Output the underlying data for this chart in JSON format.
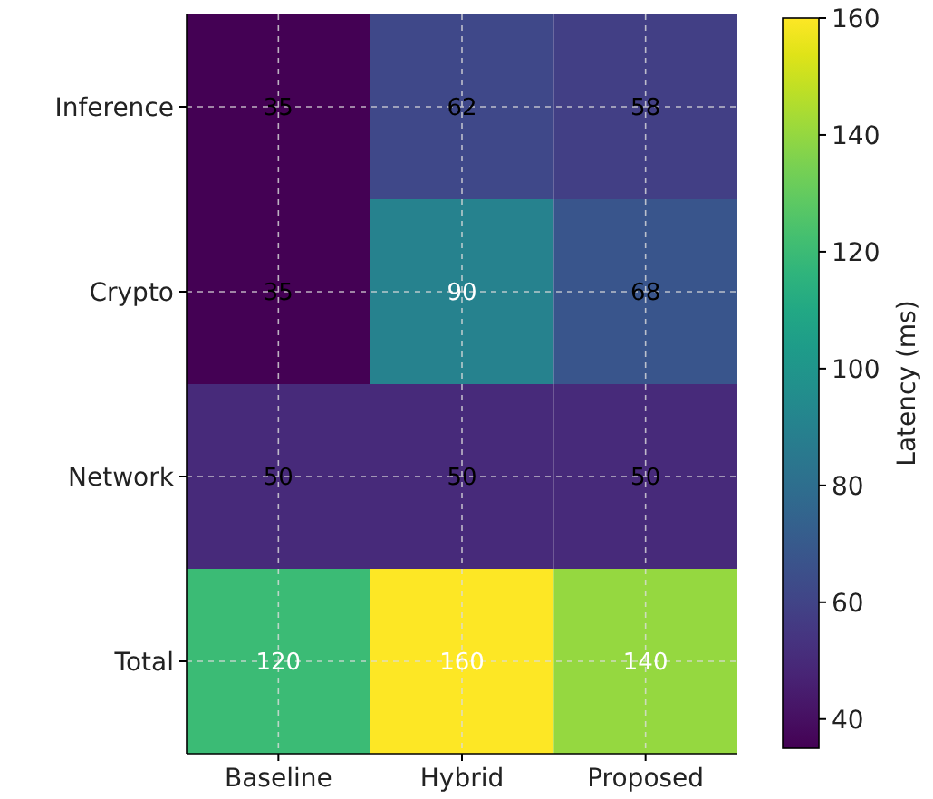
{
  "chart_data": {
    "type": "heatmap",
    "categories": [
      "Baseline",
      "Hybrid",
      "Proposed"
    ],
    "y_categories": [
      "Inference",
      "Crypto",
      "Network",
      "Total"
    ],
    "cells": [
      [
        35,
        62,
        58
      ],
      [
        35,
        90,
        68
      ],
      [
        50,
        50,
        50
      ],
      [
        120,
        160,
        140
      ]
    ],
    "data_labels": true,
    "grid": true,
    "clabel": "Latency (ms)",
    "clim": [
      35,
      160
    ],
    "cticks": [
      40,
      60,
      80,
      100,
      120,
      140,
      160
    ]
  }
}
